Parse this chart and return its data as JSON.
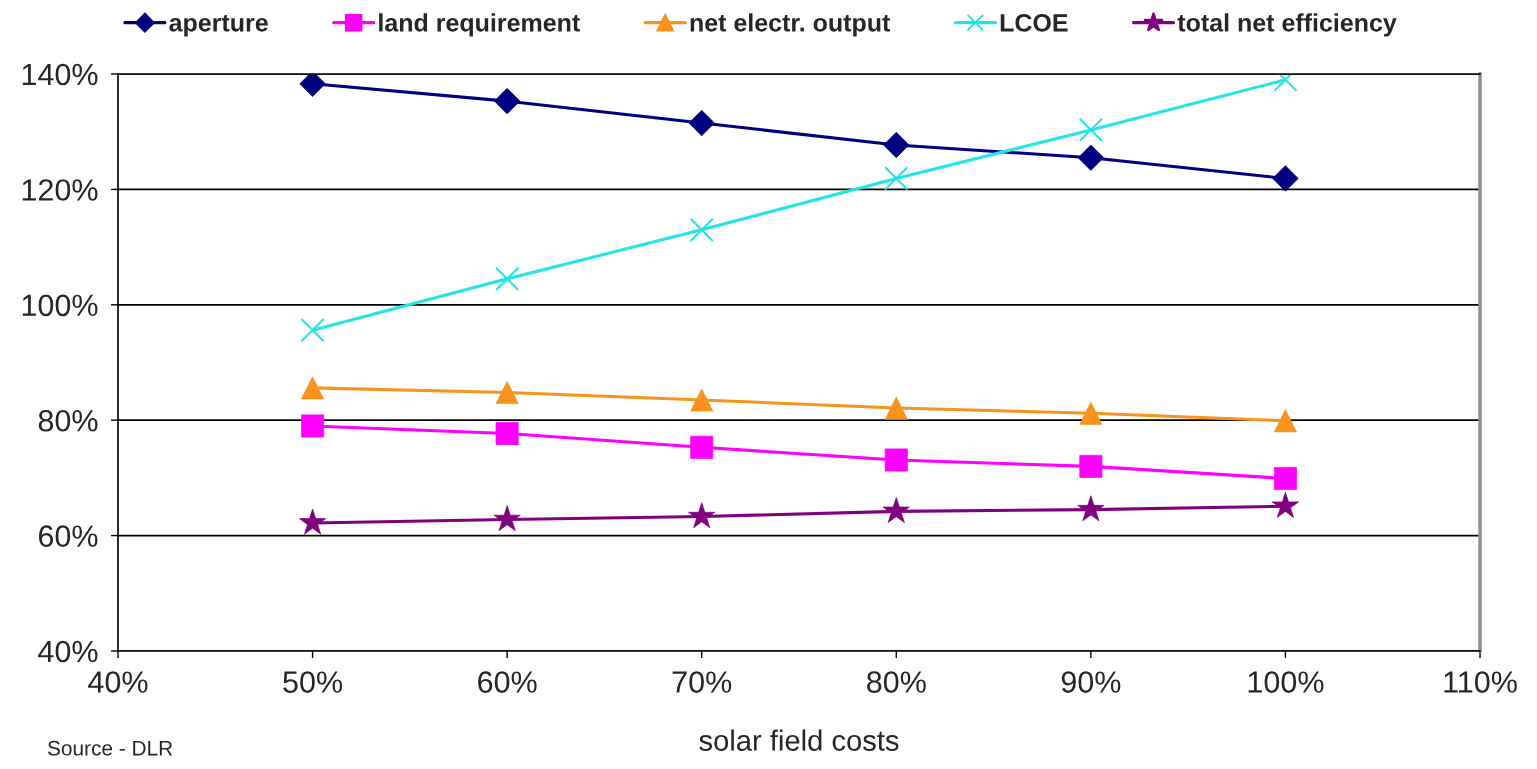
{
  "chart_data": {
    "type": "line",
    "x": [
      50,
      60,
      70,
      80,
      90,
      100
    ],
    "xlabel": "solar field costs",
    "xlim": [
      40,
      110
    ],
    "xticks": [
      {
        "value": 40,
        "label": "40%"
      },
      {
        "value": 50,
        "label": "50%"
      },
      {
        "value": 60,
        "label": "60%"
      },
      {
        "value": 70,
        "label": "70%"
      },
      {
        "value": 80,
        "label": "80%"
      },
      {
        "value": 90,
        "label": "90%"
      },
      {
        "value": 100,
        "label": "100%"
      },
      {
        "value": 110,
        "label": "110%"
      }
    ],
    "ylim": [
      40,
      140
    ],
    "yticks": [
      {
        "value": 40,
        "label": "40%"
      },
      {
        "value": 60,
        "label": "60%"
      },
      {
        "value": 80,
        "label": "80%"
      },
      {
        "value": 100,
        "label": "100%"
      },
      {
        "value": 120,
        "label": "120%"
      },
      {
        "value": 140,
        "label": "140%"
      }
    ],
    "grid": "y",
    "legend": "top",
    "annotations": [
      "Source - DLR"
    ],
    "series": [
      {
        "name": "aperture",
        "color": "#000080",
        "marker": "diamond",
        "values": [
          138.3,
          135.3,
          131.5,
          127.7,
          125.5,
          121.9
        ]
      },
      {
        "name": "land requirement",
        "color": "#ff00ff",
        "marker": "square",
        "values": [
          79.0,
          77.7,
          75.3,
          73.1,
          72.0,
          69.9
        ]
      },
      {
        "name": "net electr. output",
        "color": "#f7941d",
        "marker": "triangle",
        "values": [
          85.6,
          84.8,
          83.5,
          82.1,
          81.2,
          79.9
        ]
      },
      {
        "name": "LCOE",
        "color": "#22e5e5",
        "marker": "cross",
        "values": [
          95.6,
          104.5,
          113.0,
          121.9,
          130.3,
          139.0
        ]
      },
      {
        "name": "total net efficiency",
        "color": "#800080",
        "marker": "star",
        "values": [
          62.2,
          62.8,
          63.3,
          64.2,
          64.5,
          65.1
        ]
      }
    ]
  }
}
